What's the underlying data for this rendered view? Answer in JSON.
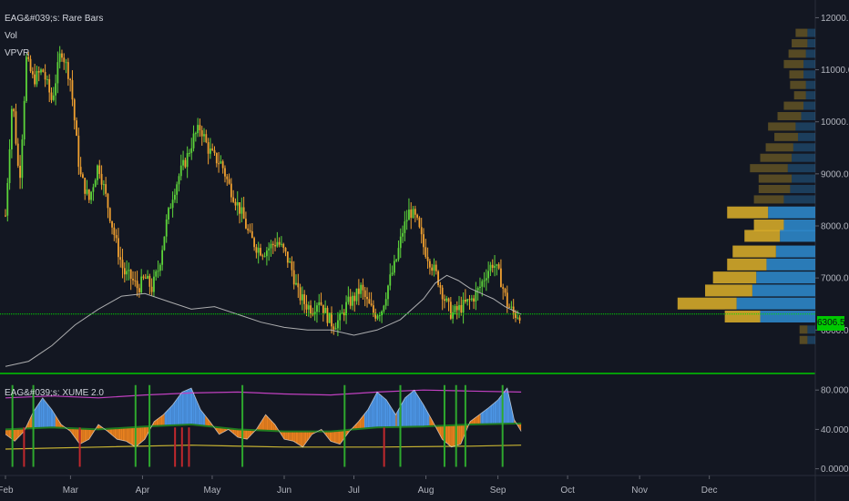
{
  "chart_data": [
    {
      "type": "candlestick",
      "legend": [
        "EAG&#039;s: Rare Bars",
        "Vol",
        "VPVR"
      ],
      "y_ticks": [
        "12000.0",
        "11000.0",
        "10000.0",
        "9000.0",
        "8000.0",
        "7000.0",
        "6000.0"
      ],
      "last_price_label": "6306.5",
      "last_price": 6306.5,
      "ylim": [
        5200,
        12200
      ],
      "x_ticks": [
        "Feb",
        "Mar",
        "Apr",
        "May",
        "Jun",
        "Jul",
        "Aug",
        "Sep",
        "Oct",
        "Nov",
        "Dec"
      ],
      "close_path": [
        [
          0,
          8200
        ],
        [
          3,
          10500
        ],
        [
          6,
          8800
        ],
        [
          9,
          11200
        ],
        [
          12,
          10800
        ],
        [
          16,
          11000
        ],
        [
          20,
          10400
        ],
        [
          24,
          11400
        ],
        [
          28,
          10800
        ],
        [
          32,
          9000
        ],
        [
          36,
          8500
        ],
        [
          40,
          9200
        ],
        [
          44,
          8400
        ],
        [
          48,
          7600
        ],
        [
          51,
          7100
        ],
        [
          54,
          7000
        ],
        [
          57,
          6800
        ],
        [
          60,
          7000
        ],
        [
          63,
          6800
        ],
        [
          66,
          7200
        ],
        [
          69,
          8000
        ],
        [
          72,
          8600
        ],
        [
          75,
          9000
        ],
        [
          78,
          9300
        ],
        [
          81,
          9700
        ],
        [
          84,
          9900
        ],
        [
          87,
          9500
        ],
        [
          90,
          9300
        ],
        [
          93,
          9200
        ],
        [
          96,
          8800
        ],
        [
          99,
          8500
        ],
        [
          102,
          8200
        ],
        [
          105,
          7800
        ],
        [
          108,
          7600
        ],
        [
          111,
          7500
        ],
        [
          114,
          7600
        ],
        [
          117,
          7700
        ],
        [
          120,
          7500
        ],
        [
          123,
          7200
        ],
        [
          126,
          6700
        ],
        [
          129,
          6500
        ],
        [
          132,
          6400
        ],
        [
          135,
          6600
        ],
        [
          138,
          6300
        ],
        [
          141,
          6100
        ],
        [
          144,
          6200
        ],
        [
          147,
          6500
        ],
        [
          150,
          6600
        ],
        [
          153,
          6800
        ],
        [
          156,
          6500
        ],
        [
          159,
          6300
        ],
        [
          162,
          6400
        ],
        [
          165,
          6900
        ],
        [
          168,
          7300
        ],
        [
          171,
          7900
        ],
        [
          174,
          8300
        ],
        [
          177,
          8100
        ],
        [
          180,
          7600
        ],
        [
          183,
          7300
        ],
        [
          186,
          7000
        ],
        [
          189,
          6600
        ],
        [
          192,
          6300
        ],
        [
          195,
          6400
        ],
        [
          198,
          6500
        ],
        [
          201,
          6600
        ],
        [
          204,
          6800
        ],
        [
          207,
          7100
        ],
        [
          210,
          7300
        ],
        [
          213,
          7000
        ],
        [
          216,
          6500
        ],
        [
          219,
          6300
        ],
        [
          222,
          6306.5
        ]
      ],
      "ma_path": [
        [
          0,
          5300
        ],
        [
          10,
          5400
        ],
        [
          20,
          5700
        ],
        [
          30,
          6100
        ],
        [
          40,
          6400
        ],
        [
          50,
          6650
        ],
        [
          60,
          6700
        ],
        [
          70,
          6550
        ],
        [
          80,
          6400
        ],
        [
          90,
          6450
        ],
        [
          100,
          6300
        ],
        [
          110,
          6150
        ],
        [
          120,
          6050
        ],
        [
          130,
          6000
        ],
        [
          140,
          6000
        ],
        [
          150,
          5900
        ],
        [
          160,
          6000
        ],
        [
          170,
          6200
        ],
        [
          180,
          6600
        ],
        [
          185,
          6900
        ],
        [
          190,
          7050
        ],
        [
          195,
          6950
        ],
        [
          200,
          6800
        ],
        [
          205,
          6700
        ],
        [
          210,
          6600
        ],
        [
          215,
          6450
        ],
        [
          222,
          6300
        ]
      ],
      "vpvr_levels": [
        {
          "price": 11700,
          "up": 0.15,
          "down": 0.1,
          "faded": true
        },
        {
          "price": 11500,
          "up": 0.2,
          "down": 0.1,
          "faded": true
        },
        {
          "price": 11300,
          "up": 0.22,
          "down": 0.12,
          "faded": true
        },
        {
          "price": 11100,
          "up": 0.25,
          "down": 0.15,
          "faded": true
        },
        {
          "price": 10900,
          "up": 0.18,
          "down": 0.15,
          "faded": true
        },
        {
          "price": 10700,
          "up": 0.2,
          "down": 0.12,
          "faded": true
        },
        {
          "price": 10500,
          "up": 0.15,
          "down": 0.12,
          "faded": true
        },
        {
          "price": 10300,
          "up": 0.25,
          "down": 0.15,
          "faded": true
        },
        {
          "price": 10100,
          "up": 0.3,
          "down": 0.18,
          "faded": true
        },
        {
          "price": 9900,
          "up": 0.35,
          "down": 0.25,
          "faded": true
        },
        {
          "price": 9700,
          "up": 0.3,
          "down": 0.22,
          "faded": true
        },
        {
          "price": 9500,
          "up": 0.35,
          "down": 0.28,
          "faded": true
        },
        {
          "price": 9300,
          "up": 0.4,
          "down": 0.3,
          "faded": true
        },
        {
          "price": 9100,
          "up": 0.48,
          "down": 0.35,
          "faded": true
        },
        {
          "price": 8900,
          "up": 0.42,
          "down": 0.3,
          "faded": true
        },
        {
          "price": 8700,
          "up": 0.4,
          "down": 0.32,
          "faded": true
        },
        {
          "price": 8500,
          "up": 0.38,
          "down": 0.4,
          "faded": true
        },
        {
          "price": 8250,
          "up": 0.52,
          "down": 0.6,
          "faded": false
        },
        {
          "price": 8000,
          "up": 0.38,
          "down": 0.4,
          "faded": false
        },
        {
          "price": 7800,
          "up": 0.45,
          "down": 0.45,
          "faded": false
        },
        {
          "price": 7500,
          "up": 0.55,
          "down": 0.5,
          "faded": false
        },
        {
          "price": 7250,
          "up": 0.5,
          "down": 0.62,
          "faded": false
        },
        {
          "price": 7000,
          "up": 0.55,
          "down": 0.75,
          "faded": false
        },
        {
          "price": 6750,
          "up": 0.6,
          "down": 0.8,
          "faded": false
        },
        {
          "price": 6500,
          "up": 0.75,
          "down": 1.0,
          "faded": false
        },
        {
          "price": 6250,
          "up": 0.45,
          "down": 0.7,
          "faded": false
        },
        {
          "price": 6000,
          "up": 0.1,
          "down": 0.1,
          "faded": true
        },
        {
          "price": 5800,
          "up": 0.1,
          "down": 0.1,
          "faded": true
        }
      ]
    },
    {
      "type": "area",
      "legend": [
        "EAG&#039;s: XUME 2.0"
      ],
      "y_ticks": [
        "80.0000",
        "40.0000",
        "0.0000"
      ],
      "ylim": [
        -5,
        95
      ],
      "oscillator_path": [
        [
          0,
          35
        ],
        [
          4,
          28
        ],
        [
          8,
          38
        ],
        [
          12,
          58
        ],
        [
          16,
          72
        ],
        [
          20,
          60
        ],
        [
          24,
          45
        ],
        [
          28,
          38
        ],
        [
          32,
          25
        ],
        [
          36,
          30
        ],
        [
          40,
          45
        ],
        [
          44,
          38
        ],
        [
          48,
          30
        ],
        [
          52,
          28
        ],
        [
          56,
          22
        ],
        [
          60,
          30
        ],
        [
          64,
          48
        ],
        [
          68,
          55
        ],
        [
          72,
          65
        ],
        [
          76,
          78
        ],
        [
          80,
          82
        ],
        [
          84,
          60
        ],
        [
          88,
          48
        ],
        [
          92,
          35
        ],
        [
          96,
          40
        ],
        [
          100,
          32
        ],
        [
          104,
          30
        ],
        [
          108,
          40
        ],
        [
          112,
          55
        ],
        [
          116,
          45
        ],
        [
          120,
          30
        ],
        [
          124,
          28
        ],
        [
          128,
          22
        ],
        [
          132,
          35
        ],
        [
          136,
          40
        ],
        [
          140,
          28
        ],
        [
          144,
          25
        ],
        [
          148,
          38
        ],
        [
          152,
          48
        ],
        [
          156,
          60
        ],
        [
          160,
          78
        ],
        [
          164,
          70
        ],
        [
          168,
          55
        ],
        [
          172,
          72
        ],
        [
          176,
          80
        ],
        [
          180,
          65
        ],
        [
          184,
          48
        ],
        [
          188,
          30
        ],
        [
          192,
          22
        ],
        [
          196,
          25
        ],
        [
          200,
          48
        ],
        [
          204,
          55
        ],
        [
          208,
          62
        ],
        [
          212,
          70
        ],
        [
          216,
          82
        ],
        [
          219,
          50
        ],
        [
          222,
          38
        ]
      ],
      "baseline_path": [
        [
          0,
          40
        ],
        [
          20,
          42
        ],
        [
          40,
          40
        ],
        [
          60,
          43
        ],
        [
          80,
          45
        ],
        [
          100,
          40
        ],
        [
          120,
          38
        ],
        [
          140,
          38
        ],
        [
          160,
          42
        ],
        [
          180,
          43
        ],
        [
          200,
          45
        ],
        [
          222,
          46
        ]
      ],
      "upper_band_path": [
        [
          0,
          72
        ],
        [
          20,
          74
        ],
        [
          40,
          72
        ],
        [
          60,
          75
        ],
        [
          80,
          77
        ],
        [
          100,
          78
        ],
        [
          120,
          76
        ],
        [
          140,
          75
        ],
        [
          160,
          78
        ],
        [
          180,
          80
        ],
        [
          200,
          79
        ],
        [
          222,
          78
        ]
      ],
      "lower_band_path": [
        [
          0,
          20
        ],
        [
          40,
          22
        ],
        [
          80,
          24
        ],
        [
          120,
          22
        ],
        [
          160,
          22
        ],
        [
          200,
          23
        ],
        [
          222,
          24
        ]
      ],
      "green_spikes": [
        3,
        12,
        56,
        62,
        102,
        146,
        170,
        189,
        194,
        198,
        214
      ],
      "red_spikes": [
        8,
        32,
        73,
        76,
        79,
        163
      ]
    }
  ],
  "colors": {
    "background": "#131722",
    "up_candle": "#5cd33a",
    "down_candle": "#f0a030",
    "ma_line": "#c8c8c8",
    "price_line": "#00e000",
    "vp_up": "#d4a829",
    "vp_down": "#2e86c8",
    "osc_bull": "#4f9cf0",
    "osc_bear": "#f5871f",
    "upper_band": "#c040c0",
    "mid_band": "#1f7a1f",
    "lower_band": "#c8b432",
    "divider": "#00c800"
  }
}
